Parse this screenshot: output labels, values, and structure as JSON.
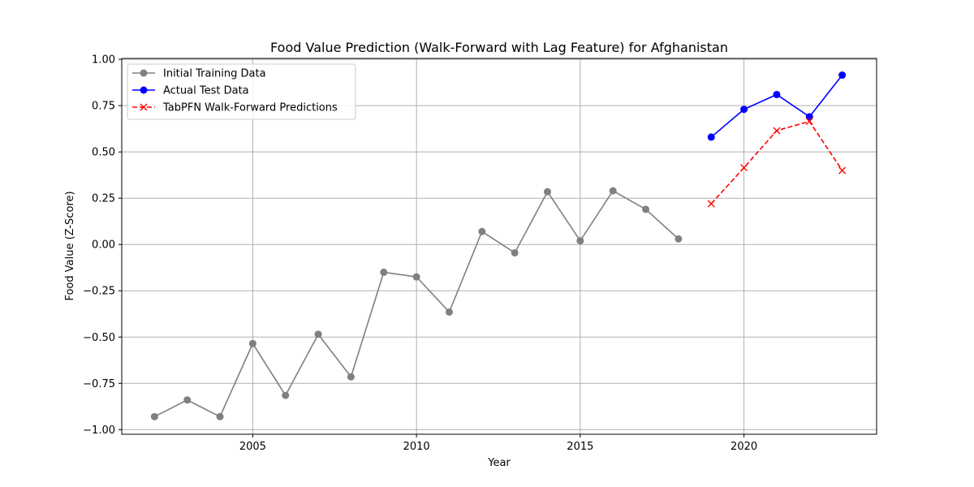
{
  "chart_data": {
    "type": "line",
    "title": "Food Value Prediction (Walk-Forward with Lag Feature) for Afghanistan",
    "xlabel": "Year",
    "ylabel": "Food Value (Z-Score)",
    "xlim": [
      2001.0,
      2024.05
    ],
    "ylim": [
      -1.025,
      1.005
    ],
    "xticks": [
      2005,
      2010,
      2015,
      2020
    ],
    "yticks": [
      1.0,
      0.75,
      0.5,
      0.25,
      0.0,
      -0.25,
      -0.5,
      -0.75,
      -1.0
    ],
    "xtick_labels": [
      "2005",
      "2010",
      "2015",
      "2020"
    ],
    "ytick_labels": [
      "1.00",
      "0.75",
      "0.50",
      "0.25",
      "0.00",
      "−0.25",
      "−0.50",
      "−0.75",
      "−1.00"
    ],
    "grid": true,
    "legend_position": "top-left",
    "series": [
      {
        "name": "Initial Training Data",
        "color": "#808080",
        "marker": "circle",
        "linestyle": "solid",
        "x": [
          2002,
          2003,
          2004,
          2005,
          2006,
          2007,
          2008,
          2009,
          2010,
          2011,
          2012,
          2013,
          2014,
          2015,
          2016,
          2017,
          2018
        ],
        "y": [
          -0.93,
          -0.84,
          -0.93,
          -0.535,
          -0.815,
          -0.485,
          -0.715,
          -0.15,
          -0.175,
          -0.365,
          0.07,
          -0.045,
          0.285,
          0.02,
          0.29,
          0.19,
          0.03
        ]
      },
      {
        "name": "Actual Test Data",
        "color": "#0000ff",
        "marker": "circle",
        "linestyle": "solid",
        "x": [
          2019,
          2020,
          2021,
          2022,
          2023
        ],
        "y": [
          0.58,
          0.73,
          0.81,
          0.69,
          0.915
        ]
      },
      {
        "name": "TabPFN Walk-Forward Predictions",
        "color": "#ff0000",
        "marker": "x",
        "linestyle": "dashed",
        "x": [
          2019,
          2020,
          2021,
          2022,
          2023
        ],
        "y": [
          0.22,
          0.415,
          0.615,
          0.665,
          0.4
        ]
      }
    ]
  }
}
